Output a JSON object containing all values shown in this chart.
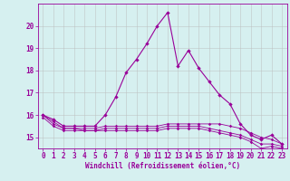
{
  "xlabel": "Windchill (Refroidissement éolien,°C)",
  "background_color": "#d6f0f0",
  "line_color": "#990099",
  "grid_color": "#bbbbbb",
  "hours": [
    0,
    1,
    2,
    3,
    4,
    5,
    6,
    7,
    8,
    9,
    10,
    11,
    12,
    13,
    14,
    15,
    16,
    17,
    18,
    19,
    20,
    21,
    22,
    23
  ],
  "temp": [
    16.0,
    15.8,
    15.5,
    15.5,
    15.5,
    15.5,
    16.0,
    16.8,
    17.9,
    18.5,
    19.2,
    20.0,
    20.6,
    18.2,
    18.9,
    18.1,
    17.5,
    16.9,
    16.5,
    15.6,
    15.1,
    14.9,
    15.1,
    14.7
  ],
  "windchill1": [
    16.0,
    15.7,
    15.4,
    15.4,
    15.4,
    15.4,
    15.5,
    15.5,
    15.5,
    15.5,
    15.5,
    15.5,
    15.6,
    15.6,
    15.6,
    15.6,
    15.6,
    15.6,
    15.5,
    15.4,
    15.2,
    15.0,
    14.9,
    14.7
  ],
  "windchill2": [
    16.0,
    15.6,
    15.4,
    15.4,
    15.3,
    15.3,
    15.4,
    15.4,
    15.4,
    15.4,
    15.4,
    15.4,
    15.5,
    15.5,
    15.5,
    15.5,
    15.4,
    15.3,
    15.2,
    15.1,
    14.9,
    14.7,
    14.7,
    14.6
  ],
  "windchill3": [
    15.9,
    15.5,
    15.3,
    15.3,
    15.3,
    15.3,
    15.3,
    15.3,
    15.3,
    15.3,
    15.3,
    15.3,
    15.4,
    15.4,
    15.4,
    15.4,
    15.3,
    15.2,
    15.1,
    15.0,
    14.8,
    14.5,
    14.6,
    14.5
  ],
  "ylim": [
    14.5,
    21.0
  ],
  "yticks": [
    15,
    16,
    17,
    18,
    19,
    20
  ],
  "xlim": [
    -0.5,
    23.5
  ],
  "tick_fontsize": 5.5,
  "xlabel_fontsize": 5.5
}
